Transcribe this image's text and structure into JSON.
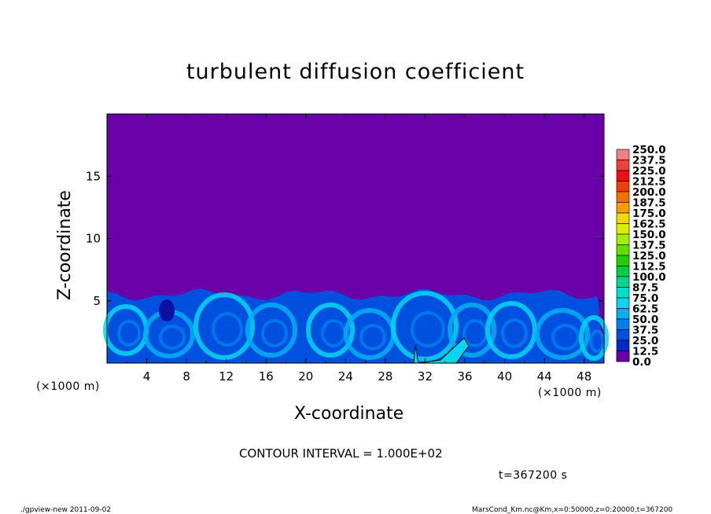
{
  "chart_data": {
    "type": "heatmap",
    "title": "turbulent diffusion coefficient",
    "xlabel": "X-coordinate",
    "ylabel": "Z-coordinate",
    "x_unit": "(×1000 m)",
    "y_unit": "(×1000 m)",
    "x_ticks": [
      "4",
      "8",
      "12",
      "16",
      "20",
      "24",
      "28",
      "32",
      "36",
      "40",
      "44",
      "48"
    ],
    "x_tick_values": [
      4,
      8,
      12,
      16,
      20,
      24,
      28,
      32,
      36,
      40,
      44,
      48
    ],
    "y_ticks": [
      "5",
      "10",
      "15"
    ],
    "y_tick_values": [
      5,
      10,
      15
    ],
    "xlim": [
      0,
      50
    ],
    "ylim": [
      0,
      20
    ],
    "contour_interval_text": "CONTOUR INTERVAL = 1.000E+02",
    "time_text": "t=367200 s",
    "colorbar": {
      "labels": [
        "250.0",
        "237.5",
        "225.0",
        "212.5",
        "200.0",
        "187.5",
        "175.0",
        "162.5",
        "150.0",
        "137.5",
        "125.0",
        "112.5",
        "100.0",
        "87.5",
        "75.0",
        "62.5",
        "50.0",
        "37.5",
        "25.0",
        "12.5",
        "0.0"
      ],
      "colors": [
        "#f08080",
        "#f04040",
        "#ee1010",
        "#f04000",
        "#f07000",
        "#f0a000",
        "#f0d800",
        "#d8f000",
        "#a0f000",
        "#60e000",
        "#20d000",
        "#00d040",
        "#00d890",
        "#00e0c8",
        "#00d8f0",
        "#00b0f0",
        "#0080f0",
        "#0050e0",
        "#0028c8",
        "#1010a0",
        "#6a00a8"
      ]
    },
    "background_value": 0.0,
    "turbulent_layer_top": 6,
    "notes_fields": [
      "x",
      "z",
      "Km"
    ]
  },
  "footer": {
    "left": "./gpview-new   2011-09-02",
    "right": "MarsCond_Km.nc@Km,x=0:50000,z=0:20000,t=367200"
  }
}
